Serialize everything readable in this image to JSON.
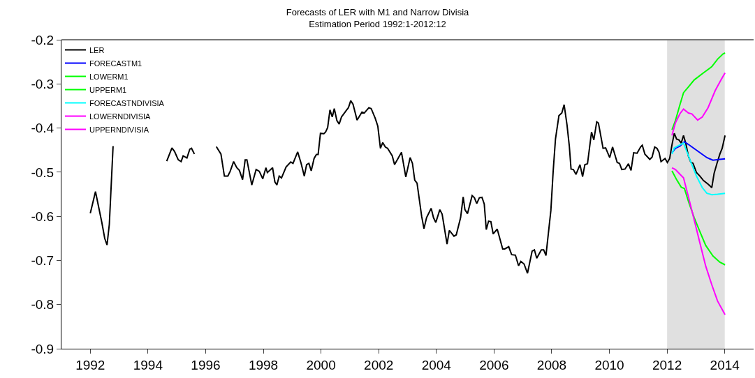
{
  "chart_data": {
    "type": "line",
    "title": "Forecasts of LER with M1 and Narrow Divisia",
    "subtitle": "Estimation Period 1992:1-2012:12",
    "xlim": [
      1991,
      2015
    ],
    "xticks": [
      1992,
      1994,
      1996,
      1998,
      2000,
      2002,
      2004,
      2006,
      2008,
      2010,
      2012,
      2014
    ],
    "ylim": [
      -0.9,
      -0.2
    ],
    "yticks": [
      -0.9,
      -0.8,
      -0.7,
      -0.6,
      -0.5,
      -0.4,
      -0.3,
      -0.2
    ],
    "grid": false,
    "legend": "top left",
    "marker": "none",
    "line_style": "solid",
    "bands": [
      {
        "axis": "x",
        "from": 2012,
        "to": 2014,
        "color": "#e0e0e0"
      }
    ],
    "series": [
      {
        "name": "LER",
        "color": "#000000",
        "x": [
          1992.0,
          1992.18,
          1992.4,
          1992.5,
          1992.58,
          1992.66,
          1992.79,
          1992.89,
          1993.25,
          1994.5,
          1994.65,
          1994.83,
          1994.92,
          1995.05,
          1995.15,
          1995.22,
          1995.35,
          1995.45,
          1995.51,
          1995.61,
          1995.76,
          1996.27,
          1996.37,
          1996.53,
          1996.65,
          1996.77,
          1996.85,
          1996.97,
          1997.08,
          1997.17,
          1997.28,
          1997.37,
          1997.43,
          1997.6,
          1997.75,
          1997.86,
          1997.98,
          1998.09,
          1998.14,
          1998.32,
          1998.4,
          1998.47,
          1998.55,
          1998.63,
          1998.79,
          1998.95,
          1999.03,
          1999.19,
          1999.31,
          1999.42,
          1999.5,
          1999.58,
          1999.66,
          1999.76,
          1999.84,
          1999.9,
          1999.98,
          2000.1,
          2000.16,
          2000.23,
          2000.31,
          2000.39,
          2000.46,
          2000.55,
          2000.63,
          2000.71,
          2000.89,
          2000.95,
          2001.03,
          2001.11,
          2001.25,
          2001.42,
          2001.5,
          2001.66,
          2001.74,
          2001.88,
          2001.97,
          2002.06,
          2002.14,
          2002.23,
          2002.31,
          2002.47,
          2002.55,
          2002.67,
          2002.79,
          2002.94,
          2003.09,
          2003.17,
          2003.25,
          2003.33,
          2003.49,
          2003.57,
          2003.66,
          2003.82,
          2003.9,
          2003.98,
          2004.12,
          2004.2,
          2004.37,
          2004.45,
          2004.61,
          2004.69,
          2004.84,
          2004.93,
          2004.99,
          2005.08,
          2005.24,
          2005.32,
          2005.4,
          2005.49,
          2005.58,
          2005.66,
          2005.73,
          2005.81,
          2005.89,
          2005.97,
          2006.11,
          2006.3,
          2006.37,
          2006.51,
          2006.61,
          2006.74,
          2006.85,
          2006.93,
          2007.04,
          2007.16,
          2007.32,
          2007.4,
          2007.48,
          2007.64,
          2007.72,
          2007.8,
          2007.97,
          2008.05,
          2008.13,
          2008.25,
          2008.35,
          2008.43,
          2008.53,
          2008.61,
          2008.67,
          2008.75,
          2008.84,
          2008.98,
          2009.07,
          2009.15,
          2009.24,
          2009.38,
          2009.46,
          2009.56,
          2009.62,
          2009.78,
          2009.87,
          2010.01,
          2010.11,
          2010.27,
          2010.35,
          2010.43,
          2010.54,
          2010.66,
          2010.75,
          2010.84,
          2010.96,
          2011.08,
          2011.14,
          2011.23,
          2011.4,
          2011.48,
          2011.57,
          2011.65,
          2011.72,
          2011.79,
          2011.93,
          2012.01,
          2012.09,
          2012.17,
          2012.25,
          2012.33,
          2012.41,
          2012.49,
          2012.57,
          2012.65,
          2012.74,
          2012.82,
          2012.9,
          2013.02,
          2013.14,
          2013.26,
          2013.42,
          2013.55,
          2013.63,
          2013.73,
          2013.83,
          2013.91,
          2014.01
        ],
        "values": [
          -0.593,
          -0.544,
          -0.614,
          -0.65,
          -0.665,
          -0.618,
          -0.441,
          null,
          null,
          null,
          -0.475,
          -0.445,
          -0.453,
          -0.472,
          -0.476,
          -0.463,
          -0.468,
          -0.448,
          -0.446,
          -0.459,
          null,
          null,
          -0.442,
          -0.459,
          -0.509,
          -0.509,
          -0.498,
          -0.476,
          -0.49,
          -0.496,
          -0.517,
          -0.472,
          -0.472,
          -0.529,
          -0.494,
          -0.498,
          -0.515,
          -0.49,
          -0.501,
          -0.49,
          -0.522,
          -0.529,
          -0.509,
          -0.513,
          -0.488,
          -0.477,
          -0.48,
          -0.454,
          -0.48,
          -0.509,
          -0.483,
          -0.48,
          -0.497,
          -0.469,
          -0.46,
          -0.46,
          -0.412,
          -0.413,
          -0.409,
          -0.399,
          -0.359,
          -0.375,
          -0.356,
          -0.383,
          -0.391,
          -0.375,
          -0.359,
          -0.354,
          -0.338,
          -0.346,
          -0.382,
          -0.364,
          -0.366,
          -0.354,
          -0.356,
          -0.378,
          -0.396,
          -0.446,
          -0.433,
          -0.443,
          -0.446,
          -0.463,
          -0.483,
          -0.469,
          -0.455,
          -0.511,
          -0.467,
          -0.48,
          -0.518,
          -0.525,
          -0.6,
          -0.628,
          -0.603,
          -0.582,
          -0.603,
          -0.614,
          -0.585,
          -0.595,
          -0.663,
          -0.632,
          -0.645,
          -0.642,
          -0.603,
          -0.556,
          -0.585,
          -0.594,
          -0.553,
          -0.558,
          -0.571,
          -0.558,
          -0.557,
          -0.572,
          -0.63,
          -0.611,
          -0.612,
          -0.64,
          -0.629,
          -0.674,
          -0.674,
          -0.669,
          -0.687,
          -0.688,
          -0.712,
          -0.702,
          -0.708,
          -0.729,
          -0.679,
          -0.676,
          -0.695,
          -0.676,
          -0.676,
          -0.689,
          -0.587,
          -0.498,
          -0.425,
          -0.372,
          -0.366,
          -0.347,
          -0.393,
          -0.441,
          -0.493,
          -0.494,
          -0.505,
          -0.483,
          -0.51,
          -0.483,
          -0.481,
          -0.409,
          -0.427,
          -0.386,
          -0.389,
          -0.446,
          -0.445,
          -0.467,
          -0.443,
          -0.478,
          -0.48,
          -0.494,
          -0.493,
          -0.481,
          -0.496,
          -0.456,
          -0.457,
          -0.443,
          -0.439,
          -0.459,
          -0.471,
          -0.466,
          -0.443,
          -0.446,
          -0.455,
          -0.476,
          -0.469,
          -0.478,
          -0.469,
          -0.438,
          -0.412,
          -0.425,
          -0.427,
          -0.434,
          -0.417,
          -0.435,
          -0.464,
          -0.477,
          -0.48,
          -0.501,
          -0.509,
          -0.519,
          -0.527,
          -0.535,
          -0.503,
          -0.48,
          -0.459,
          -0.446,
          -0.417
        ]
      },
      {
        "name": "FORECASTM1",
        "color": "#0000ff",
        "x": [
          2012.17,
          2012.29,
          2012.45,
          2012.6,
          2012.78,
          2013.1,
          2013.38,
          2013.59,
          2013.83,
          2014.01
        ],
        "values": [
          -0.456,
          -0.446,
          -0.441,
          -0.431,
          -0.439,
          -0.454,
          -0.467,
          -0.473,
          -0.471,
          -0.47
        ]
      },
      {
        "name": "LOWERM1",
        "color": "#00ff00",
        "x": [
          2012.17,
          2012.33,
          2012.49,
          2012.6,
          2012.74,
          2012.94,
          2013.14,
          2013.34,
          2013.59,
          2013.83,
          2014.01
        ],
        "values": [
          -0.497,
          -0.517,
          -0.534,
          -0.537,
          -0.566,
          -0.603,
          -0.635,
          -0.666,
          -0.69,
          -0.704,
          -0.71
        ]
      },
      {
        "name": "UPPERM1",
        "color": "#00ff00",
        "x": [
          2012.17,
          2012.29,
          2012.45,
          2012.57,
          2012.74,
          2012.94,
          2013.26,
          2013.55,
          2013.75,
          2013.94,
          2014.01
        ],
        "values": [
          -0.404,
          -0.383,
          -0.346,
          -0.32,
          -0.307,
          -0.291,
          -0.275,
          -0.261,
          -0.244,
          -0.232,
          -0.23
        ]
      },
      {
        "name": "FORECASTNDIVISIA",
        "color": "#00ffff",
        "x": [
          2012.17,
          2012.25,
          2012.45,
          2012.57,
          2012.7,
          2012.86,
          2013.02,
          2013.22,
          2013.38,
          2013.55,
          2013.75,
          2014.01
        ],
        "values": [
          -0.459,
          -0.445,
          -0.438,
          -0.434,
          -0.456,
          -0.483,
          -0.509,
          -0.535,
          -0.548,
          -0.551,
          -0.55,
          -0.548
        ]
      },
      {
        "name": "LOWERNDIVISIA",
        "color": "#ff00ff",
        "x": [
          2012.17,
          2012.29,
          2012.45,
          2012.57,
          2012.74,
          2012.94,
          2013.14,
          2013.34,
          2013.55,
          2013.75,
          2014.01
        ],
        "values": [
          -0.49,
          -0.494,
          -0.505,
          -0.513,
          -0.556,
          -0.608,
          -0.661,
          -0.713,
          -0.755,
          -0.792,
          -0.823
        ]
      },
      {
        "name": "UPPERNDIVISIA",
        "color": "#ff00ff",
        "x": [
          2012.17,
          2012.29,
          2012.45,
          2012.57,
          2012.74,
          2012.86,
          2013.06,
          2013.22,
          2013.42,
          2013.67,
          2013.87,
          2014.01
        ],
        "values": [
          -0.417,
          -0.388,
          -0.367,
          -0.357,
          -0.366,
          -0.368,
          -0.382,
          -0.375,
          -0.354,
          -0.315,
          -0.291,
          -0.275
        ]
      }
    ]
  }
}
